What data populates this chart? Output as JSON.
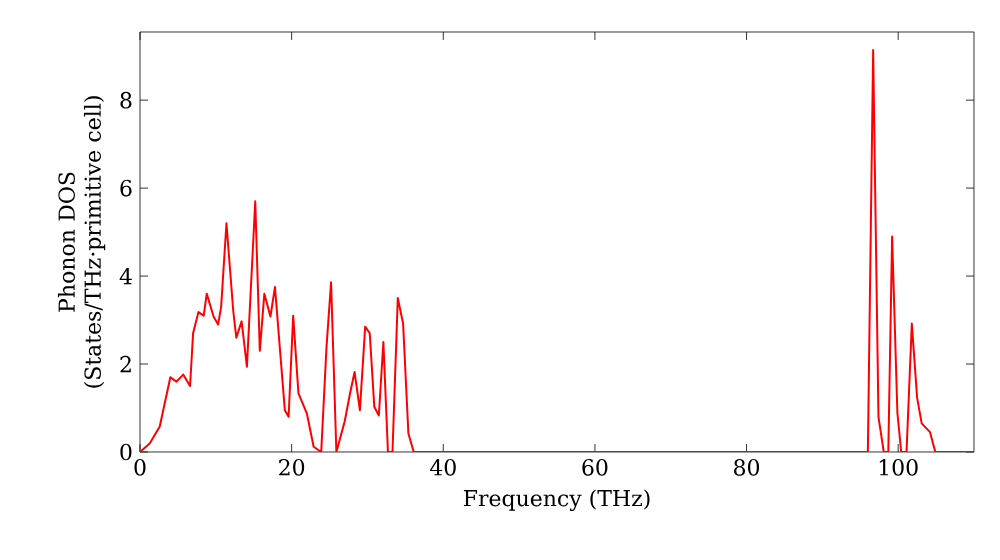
{
  "chart_data": {
    "type": "line",
    "xlabel": "Frequency (THz)",
    "ylabel": "Phonon DOS (States/THz·primitive cell)",
    "xlim": [
      0,
      110
    ],
    "ylim": [
      0,
      9.55
    ],
    "xticks": [
      0,
      20,
      40,
      60,
      80,
      100
    ],
    "yticks": [
      0,
      2,
      4,
      6,
      8
    ],
    "grid": false,
    "marker": "none",
    "line_style": "solid",
    "series": [
      {
        "color": "#ff0000",
        "x": [
          0,
          1.3,
          2.6,
          4.0,
          4.8,
          5.7,
          6.6,
          7.0,
          7.7,
          8.4,
          8.8,
          9.7,
          10.3,
          10.7,
          11.4,
          12.3,
          12.7,
          13.4,
          14.1,
          15.2,
          15.8,
          16.4,
          17.2,
          17.8,
          18.5,
          19.1,
          19.6,
          20.2,
          20.9,
          22.0,
          22.9,
          23.9,
          24.6,
          25.2,
          25.9,
          27.0,
          27.7,
          28.3,
          29.0,
          29.7,
          30.3,
          30.9,
          31.5,
          32.1,
          32.7,
          33.3,
          34.0,
          34.7,
          35.4,
          36.1,
          96.0,
          96.7,
          97.4,
          98.1,
          98.7,
          99.2,
          99.9,
          100.4,
          101.1,
          101.8,
          102.5,
          103.1,
          104.2,
          104.9,
          110
        ],
        "values": [
          0,
          0.2,
          0.58,
          1.7,
          1.6,
          1.76,
          1.5,
          2.7,
          3.18,
          3.1,
          3.6,
          3.08,
          2.9,
          3.3,
          5.2,
          3.2,
          2.6,
          2.97,
          1.94,
          5.7,
          2.3,
          3.6,
          3.08,
          3.75,
          2.24,
          0.95,
          0.8,
          3.1,
          1.33,
          0.88,
          0.12,
          0,
          2.4,
          3.86,
          0,
          0.7,
          1.33,
          1.82,
          0.95,
          2.85,
          2.7,
          1.03,
          0.83,
          2.5,
          0,
          0,
          3.5,
          2.92,
          0.42,
          0,
          0,
          9.14,
          0.8,
          0,
          0,
          4.9,
          0.88,
          0,
          0,
          2.92,
          1.23,
          0.65,
          0.45,
          0,
          0
        ]
      }
    ]
  }
}
